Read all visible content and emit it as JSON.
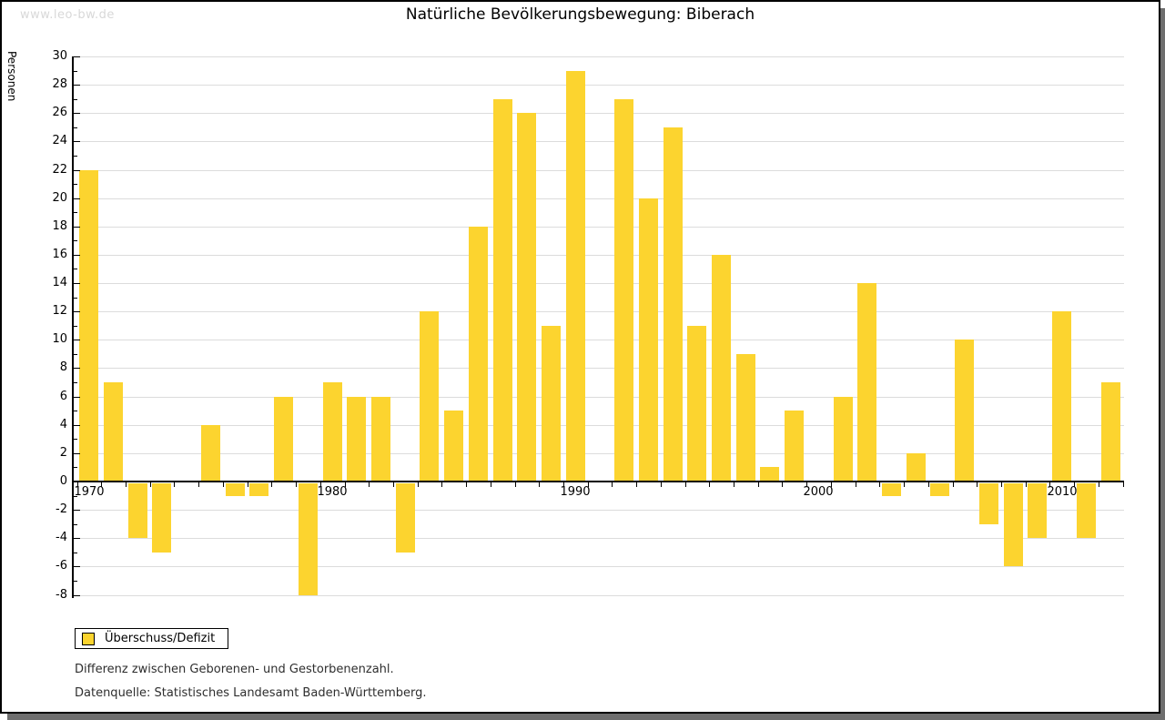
{
  "watermark": "www.leo-bw.de",
  "title": "Natürliche Bevölkerungsbewegung: Biberach",
  "legend": {
    "label": "Überschuss/Defizit"
  },
  "notes": [
    "Differenz zwischen Geborenen- und Gestorbenenzahl.",
    "Datenquelle: Statistisches Landesamt Baden-Württemberg."
  ],
  "colors": {
    "bar": "#fcd42f",
    "gridline": "#dcdcdc",
    "axis": "#000000",
    "watermark": "#d8d8d8",
    "frame_shadow": "#6e6e6e",
    "note_text": "#2e2e2e"
  },
  "chart_data": {
    "type": "bar",
    "title": "Natürliche Bevölkerungsbewegung: Biberach",
    "xlabel": "",
    "ylabel": "Personen",
    "ylim": [
      -8,
      30
    ],
    "ytick_step": 2,
    "grid": true,
    "legend_position": "bottom-left",
    "series_name": "Überschuss/Defizit",
    "x": [
      1970,
      1971,
      1972,
      1973,
      1974,
      1975,
      1976,
      1977,
      1978,
      1979,
      1980,
      1981,
      1982,
      1983,
      1984,
      1985,
      1986,
      1987,
      1988,
      1989,
      1990,
      1991,
      1992,
      1993,
      1994,
      1995,
      1996,
      1997,
      1998,
      1999,
      2000,
      2001,
      2002,
      2003,
      2004,
      2005,
      2006,
      2007,
      2008,
      2009,
      2010,
      2011,
      2012
    ],
    "values": [
      22,
      7,
      -4,
      -5,
      0,
      4,
      -1,
      -1,
      6,
      -8,
      7,
      6,
      6,
      -5,
      12,
      5,
      18,
      27,
      26,
      11,
      29,
      0,
      27,
      20,
      25,
      11,
      16,
      9,
      1,
      5,
      0,
      6,
      14,
      -1,
      2,
      -1,
      10,
      -3,
      -6,
      -4,
      12,
      -4,
      7
    ],
    "xticks_labeled": [
      1970,
      1980,
      1990,
      2000,
      2010
    ]
  }
}
